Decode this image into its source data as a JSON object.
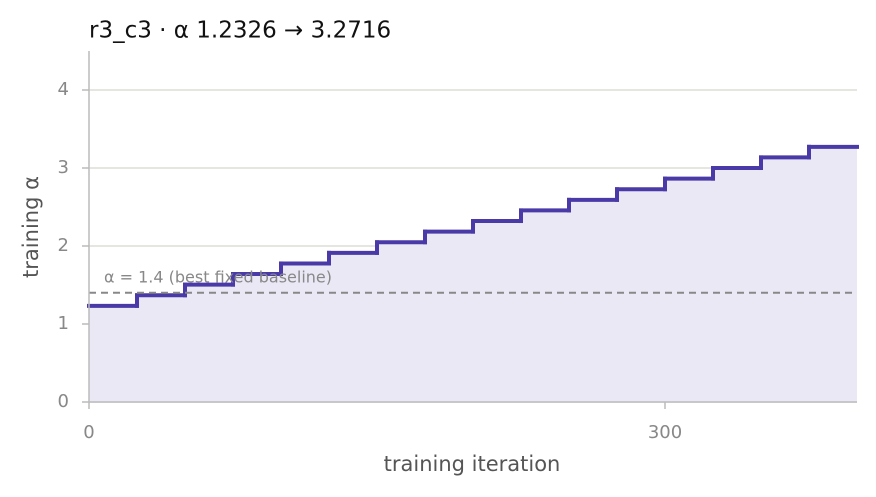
{
  "chart_data": {
    "type": "step",
    "title": "r3_c3   ·   α 1.2326 → 3.2716",
    "x_label": "training iteration",
    "y_label": "training α",
    "x": [
      0,
      25,
      50,
      75,
      100,
      125,
      150,
      175,
      200,
      225,
      250,
      275,
      300,
      325,
      350,
      375
    ],
    "series": [
      {
        "name": "training α",
        "color": "#4a3aa8",
        "values": [
          1.2326,
          1.3685,
          1.5045,
          1.6404,
          1.7763,
          1.9123,
          2.0482,
          2.1841,
          2.3201,
          2.456,
          2.5919,
          2.7279,
          2.8638,
          2.9997,
          3.1357,
          3.2716
        ]
      }
    ],
    "fill_color": "#ebe8f6",
    "baseline": {
      "value": 1.4,
      "label": "α = 1.4 (best fixed baseline)",
      "color": "#888888"
    },
    "xlim": [
      0,
      400
    ],
    "ylim": [
      0,
      4.5
    ],
    "xticks": [
      0,
      300
    ],
    "yticks": [
      0,
      1,
      2,
      3,
      4
    ],
    "grid": true
  }
}
